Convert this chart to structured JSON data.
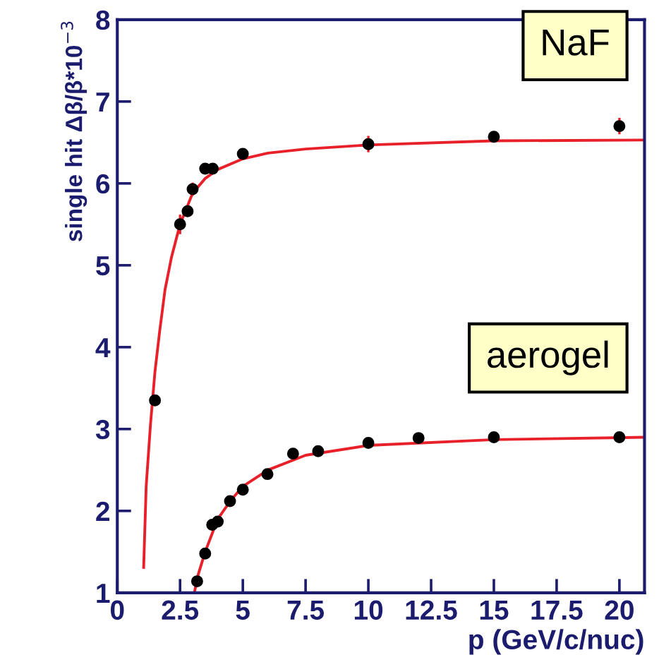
{
  "chart_data": {
    "type": "scatter",
    "xlabel": "p (GeV/c/nuc)",
    "ylabel": "single hit Δβ/β*10$^{−3}$",
    "xlim": [
      0,
      21
    ],
    "ylim": [
      1,
      8
    ],
    "xticks": [
      0,
      2.5,
      5,
      7.5,
      10,
      12.5,
      15,
      17.5,
      20
    ],
    "yticks": [
      1,
      2,
      3,
      4,
      5,
      6,
      7,
      8
    ],
    "grid": false,
    "legend": false,
    "marker": "circle",
    "annotations": [
      "NaF",
      "aerogel"
    ],
    "series": [
      {
        "color": "#000000",
        "x": [
          1.5,
          2.5,
          2.8,
          3.0,
          3.5,
          3.8,
          5.0,
          10.0,
          15.0,
          20.0
        ],
        "values": [
          3.35,
          5.5,
          5.66,
          5.93,
          6.18,
          6.18,
          6.36,
          6.48,
          6.57,
          6.7
        ],
        "errors": [
          null,
          0.12,
          0.05,
          0.08,
          0.05,
          0.05,
          0.05,
          0.1,
          0.05,
          0.1
        ]
      },
      {
        "color": "#000000",
        "x": [
          3.18,
          3.5,
          3.78,
          4.0,
          4.49,
          5.0,
          5.98,
          7.0,
          8.0,
          10.0,
          12.0,
          15.0,
          20.0
        ],
        "values": [
          1.14,
          1.48,
          1.83,
          1.87,
          2.12,
          2.26,
          2.45,
          2.7,
          2.73,
          2.83,
          2.89,
          2.9,
          2.9
        ]
      },
      {
        "type": "line",
        "color": "#e8202a",
        "marker": "none",
        "x": [
          1.05,
          1.15,
          1.32,
          1.5,
          1.69,
          1.9,
          2.16,
          2.5,
          3.0,
          3.5,
          4.0,
          5.0,
          6.0,
          7.5,
          10.0,
          15.0,
          21.0
        ],
        "values": [
          1.31,
          2.3,
          3.05,
          3.7,
          4.2,
          4.7,
          5.1,
          5.5,
          5.88,
          6.06,
          6.17,
          6.3,
          6.37,
          6.42,
          6.47,
          6.52,
          6.53
        ]
      },
      {
        "type": "line",
        "color": "#e8202a",
        "marker": "none",
        "x": [
          3.07,
          3.2,
          3.5,
          4.0,
          4.5,
          5.0,
          6.0,
          7.5,
          10.0,
          15.0,
          21.0
        ],
        "values": [
          1.0,
          1.2,
          1.5,
          1.9,
          2.12,
          2.3,
          2.5,
          2.68,
          2.8,
          2.87,
          2.9
        ]
      }
    ]
  }
}
